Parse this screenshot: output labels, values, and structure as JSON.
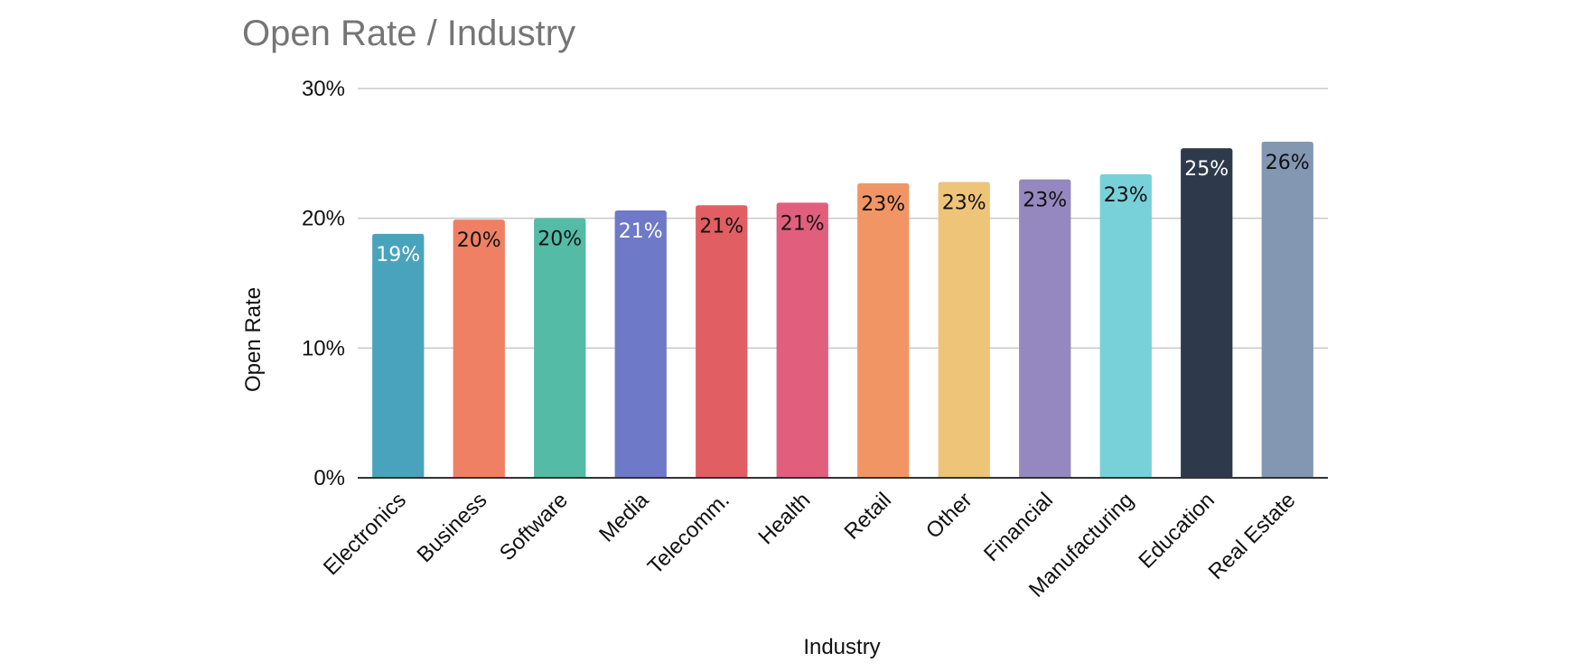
{
  "chart_data": {
    "type": "bar",
    "title": "Open Rate / Industry",
    "xlabel": "Industry",
    "ylabel": "Open Rate",
    "ylim": [
      0,
      30
    ],
    "yticks": [
      "0%",
      "10%",
      "20%",
      "30%"
    ],
    "ytick_values": [
      0,
      10,
      20,
      30
    ],
    "grid": true,
    "legend": "none",
    "categories": [
      "Electronics",
      "Business",
      "Software",
      "Media",
      "Telecomm.",
      "Health",
      "Retail",
      "Other",
      "Financial",
      "Manufacturing",
      "Education",
      "Real Estate"
    ],
    "values": [
      18.8,
      19.9,
      20.0,
      20.6,
      21.0,
      21.2,
      22.7,
      22.8,
      23.0,
      23.4,
      25.4,
      25.9
    ],
    "data_labels": [
      "19%",
      "20%",
      "20%",
      "21%",
      "21%",
      "21%",
      "23%",
      "23%",
      "23%",
      "23%",
      "25%",
      "26%"
    ],
    "colors": [
      "#4aa3bc",
      "#ef8063",
      "#53bba6",
      "#6e79c7",
      "#e15f63",
      "#e15f7d",
      "#f29565",
      "#eec478",
      "#9587bf",
      "#78d0d8",
      "#2e3a4b",
      "#8396b2"
    ],
    "label_colors": [
      "#ffffff",
      "#111111",
      "#111111",
      "#ffffff",
      "#111111",
      "#111111",
      "#111111",
      "#111111",
      "#111111",
      "#111111",
      "#ffffff",
      "#111111"
    ]
  }
}
